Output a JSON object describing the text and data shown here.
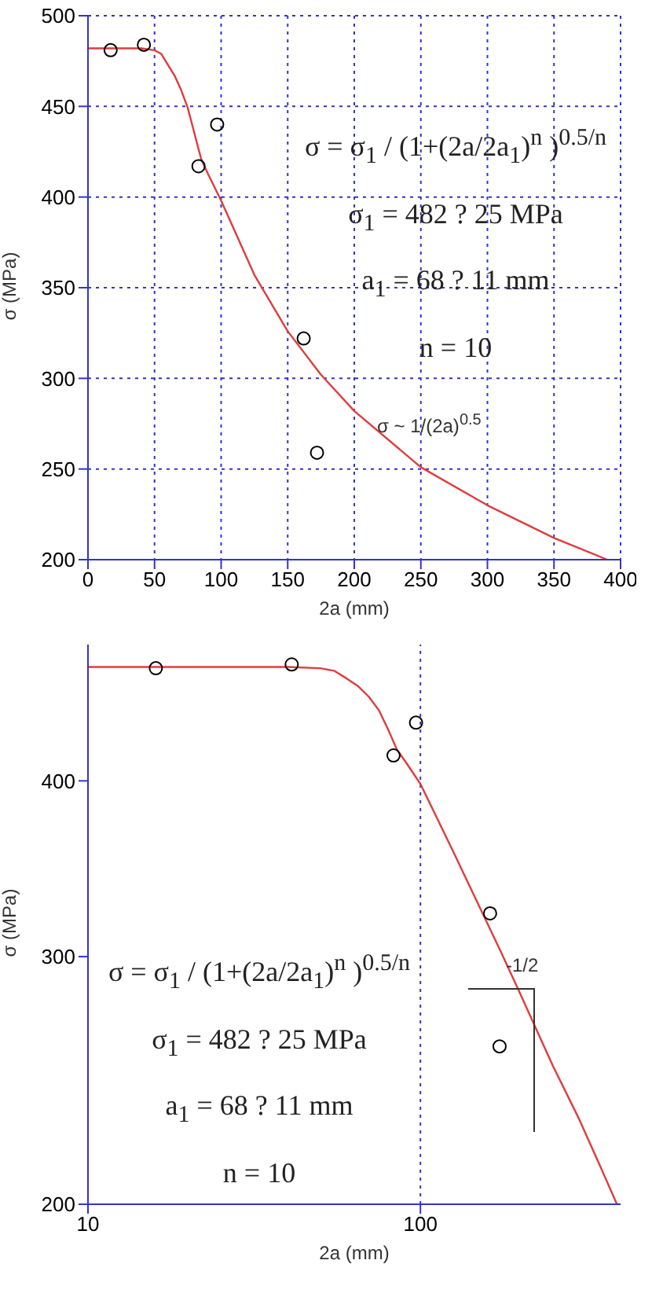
{
  "chart_data": [
    {
      "type": "scatter",
      "xlabel": "2a (mm)",
      "ylabel": "σ (MPa)",
      "xlim": [
        0,
        400
      ],
      "ylim": [
        200,
        500
      ],
      "xticks": [
        0,
        50,
        100,
        150,
        200,
        250,
        300,
        350,
        400
      ],
      "yticks": [
        200,
        250,
        300,
        350,
        400,
        450,
        500
      ],
      "grid": true,
      "annotations": [
        "σ = σ$_{1}$ / (1+(2a/2a$_{1}$)$^{n}$ )$^{0.5/n}$",
        "σ$_{1}$ = 482 ? 25 MPa",
        "a$_{1}$ = 68 ? 11 mm",
        "n = 10",
        "σ ~ 1/(2a)$^{0.5}$"
      ],
      "series": [
        {
          "type": "line",
          "color": "#e03c3c",
          "line_style": "solid",
          "marker": "none",
          "x": [
            0,
            10,
            20,
            30,
            40,
            50,
            55,
            60,
            65,
            70,
            75,
            80,
            85,
            90,
            100,
            125,
            150,
            175,
            200,
            250,
            300,
            350,
            390
          ],
          "values": [
            482,
            482,
            482,
            482,
            482,
            481,
            479,
            473,
            467,
            459,
            449,
            435,
            421,
            413,
            398,
            357,
            326,
            302,
            282,
            251,
            230,
            212,
            200
          ]
        },
        {
          "color": "#000000",
          "marker": "circle",
          "x": [
            17,
            42,
            83,
            97,
            162,
            172
          ],
          "values": [
            481,
            484,
            417,
            440,
            322,
            259
          ]
        }
      ]
    },
    {
      "type": "scatter",
      "xlabel": "2a (mm)",
      "ylabel": "σ (MPa)",
      "log": "xy",
      "xlim": [
        10,
        400
      ],
      "ylim": [
        200,
        500
      ],
      "xticks": [
        10,
        100
      ],
      "yticks": [
        200,
        300,
        400
      ],
      "ref_lines": [
        {
          "axis": "x",
          "value": 100,
          "color": "#3333cc",
          "line_style": "dotted"
        }
      ],
      "annotations": [
        "σ = σ$_{1}$ / (1+(2a/2a$_{1}$)$^{n}$ )$^{0.5/n}$",
        "σ$_{1}$ = 482 ? 25 MPa",
        "a$_{1}$ = 68 ? 11 mm",
        "n = 10",
        "-1/2"
      ],
      "series": [
        {
          "type": "line",
          "color": "#e03c3c",
          "line_style": "solid",
          "marker": "none",
          "x": [
            10,
            20,
            30,
            40,
            50,
            55,
            60,
            65,
            70,
            75,
            80,
            85,
            90,
            100,
            125,
            150,
            175,
            200,
            250,
            300,
            350,
            390
          ],
          "values": [
            482,
            482,
            482,
            482,
            481,
            479,
            473,
            467,
            459,
            449,
            435,
            421,
            413,
            398,
            357,
            326,
            302,
            282,
            251,
            230,
            212,
            200
          ]
        },
        {
          "color": "#000000",
          "marker": "circle",
          "x": [
            16,
            41,
            83,
            97,
            162,
            173
          ],
          "values": [
            481,
            484,
            417,
            440,
            322,
            259
          ]
        }
      ]
    }
  ]
}
